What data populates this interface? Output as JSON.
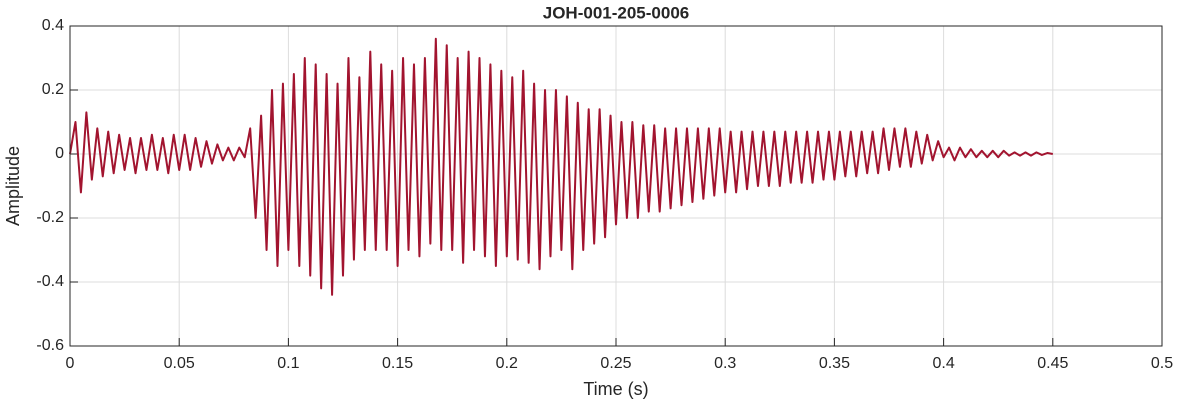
{
  "chart_data": {
    "type": "line",
    "title": "JOH-001-205-0006",
    "x_label": "Time (s)",
    "y_label": "Amplitude",
    "xlim": [
      0,
      0.5
    ],
    "ylim": [
      -0.6,
      0.4
    ],
    "xticks": [
      0,
      0.05,
      0.1,
      0.15,
      0.2,
      0.25,
      0.3,
      0.35,
      0.4,
      0.45,
      0.5
    ],
    "yticks": [
      -0.6,
      -0.4,
      -0.2,
      0,
      0.2,
      0.4
    ],
    "grid": true,
    "x": [
      0,
      0.0025,
      0.005,
      0.0075,
      0.01,
      0.0125,
      0.015,
      0.0175,
      0.02,
      0.0225,
      0.025,
      0.0275,
      0.03,
      0.0325,
      0.035,
      0.0375,
      0.04,
      0.0425,
      0.045,
      0.0475,
      0.05,
      0.0525,
      0.055,
      0.0575,
      0.06,
      0.0625,
      0.065,
      0.0675,
      0.07,
      0.0725,
      0.075,
      0.0775,
      0.08,
      0.0825,
      0.085,
      0.0875,
      0.09,
      0.0925,
      0.095,
      0.0975,
      0.1,
      0.1025,
      0.105,
      0.1075,
      0.11,
      0.1125,
      0.115,
      0.1175,
      0.12,
      0.1225,
      0.125,
      0.1275,
      0.13,
      0.1325,
      0.135,
      0.1375,
      0.14,
      0.1425,
      0.145,
      0.1475,
      0.15,
      0.1525,
      0.155,
      0.1575,
      0.16,
      0.1625,
      0.165,
      0.1675,
      0.17,
      0.1725,
      0.175,
      0.1775,
      0.18,
      0.1825,
      0.185,
      0.1875,
      0.19,
      0.1925,
      0.195,
      0.1975,
      0.2,
      0.2025,
      0.205,
      0.2075,
      0.21,
      0.2125,
      0.215,
      0.2175,
      0.22,
      0.2225,
      0.225,
      0.2275,
      0.23,
      0.2325,
      0.235,
      0.2375,
      0.24,
      0.2425,
      0.245,
      0.2475,
      0.25,
      0.2525,
      0.255,
      0.2575,
      0.26,
      0.2625,
      0.265,
      0.2675,
      0.27,
      0.2725,
      0.275,
      0.2775,
      0.28,
      0.2825,
      0.285,
      0.2875,
      0.29,
      0.2925,
      0.295,
      0.2975,
      0.3,
      0.3025,
      0.305,
      0.3075,
      0.31,
      0.3125,
      0.315,
      0.3175,
      0.32,
      0.3225,
      0.325,
      0.3275,
      0.33,
      0.3325,
      0.335,
      0.3375,
      0.34,
      0.3425,
      0.345,
      0.3475,
      0.35,
      0.3525,
      0.355,
      0.3575,
      0.36,
      0.3625,
      0.365,
      0.3675,
      0.37,
      0.3725,
      0.375,
      0.3775,
      0.38,
      0.3825,
      0.385,
      0.3875,
      0.39,
      0.3925,
      0.395,
      0.3975,
      0.4,
      0.4025,
      0.405,
      0.4075,
      0.41,
      0.4125,
      0.415,
      0.4175,
      0.42,
      0.4225,
      0.425,
      0.4275,
      0.43,
      0.4325,
      0.435,
      0.4375,
      0.44,
      0.4425,
      0.445,
      0.4475,
      0.45
    ],
    "series": [
      {
        "color": "#a2142f",
        "values": [
          0,
          0.1,
          -0.12,
          0.13,
          -0.08,
          0.08,
          -0.07,
          0.07,
          -0.06,
          0.06,
          -0.05,
          0.05,
          -0.06,
          0.05,
          -0.05,
          0.06,
          -0.05,
          0.05,
          -0.06,
          0.06,
          -0.05,
          0.06,
          -0.05,
          0.05,
          -0.04,
          0.04,
          -0.03,
          0.03,
          -0.02,
          0.02,
          -0.02,
          0.02,
          -0.01,
          0.08,
          -0.2,
          0.12,
          -0.3,
          0.2,
          -0.35,
          0.22,
          -0.3,
          0.25,
          -0.35,
          0.3,
          -0.38,
          0.28,
          -0.42,
          0.25,
          -0.44,
          0.22,
          -0.38,
          0.3,
          -0.33,
          0.24,
          -0.3,
          0.32,
          -0.3,
          0.28,
          -0.3,
          0.26,
          -0.35,
          0.3,
          -0.3,
          0.28,
          -0.32,
          0.3,
          -0.28,
          0.36,
          -0.3,
          0.34,
          -0.3,
          0.3,
          -0.34,
          0.32,
          -0.3,
          0.3,
          -0.32,
          0.28,
          -0.35,
          0.26,
          -0.32,
          0.24,
          -0.33,
          0.26,
          -0.34,
          0.22,
          -0.36,
          0.2,
          -0.32,
          0.2,
          -0.3,
          0.18,
          -0.36,
          0.16,
          -0.3,
          0.14,
          -0.28,
          0.14,
          -0.26,
          0.12,
          -0.22,
          0.1,
          -0.2,
          0.1,
          -0.2,
          0.09,
          -0.18,
          0.09,
          -0.18,
          0.08,
          -0.17,
          0.08,
          -0.16,
          0.08,
          -0.15,
          0.08,
          -0.14,
          0.08,
          -0.13,
          0.08,
          -0.12,
          0.07,
          -0.12,
          0.07,
          -0.11,
          0.07,
          -0.1,
          0.07,
          -0.1,
          0.07,
          -0.1,
          0.07,
          -0.09,
          0.07,
          -0.09,
          0.07,
          -0.09,
          0.07,
          -0.08,
          0.07,
          -0.08,
          0.07,
          -0.07,
          0.07,
          -0.07,
          0.07,
          -0.06,
          0.07,
          -0.06,
          0.08,
          -0.05,
          0.08,
          -0.04,
          0.08,
          -0.04,
          0.07,
          -0.03,
          0.06,
          -0.02,
          0.04,
          -0.01,
          0.02,
          -0.02,
          0.02,
          -0.01,
          0.015,
          -0.01,
          0.01,
          -0.01,
          0.01,
          -0.01,
          0.01,
          -0.005,
          0.005,
          -0.005,
          0.005,
          -0.005,
          0.005,
          -0.003,
          0.003,
          0
        ]
      }
    ]
  }
}
